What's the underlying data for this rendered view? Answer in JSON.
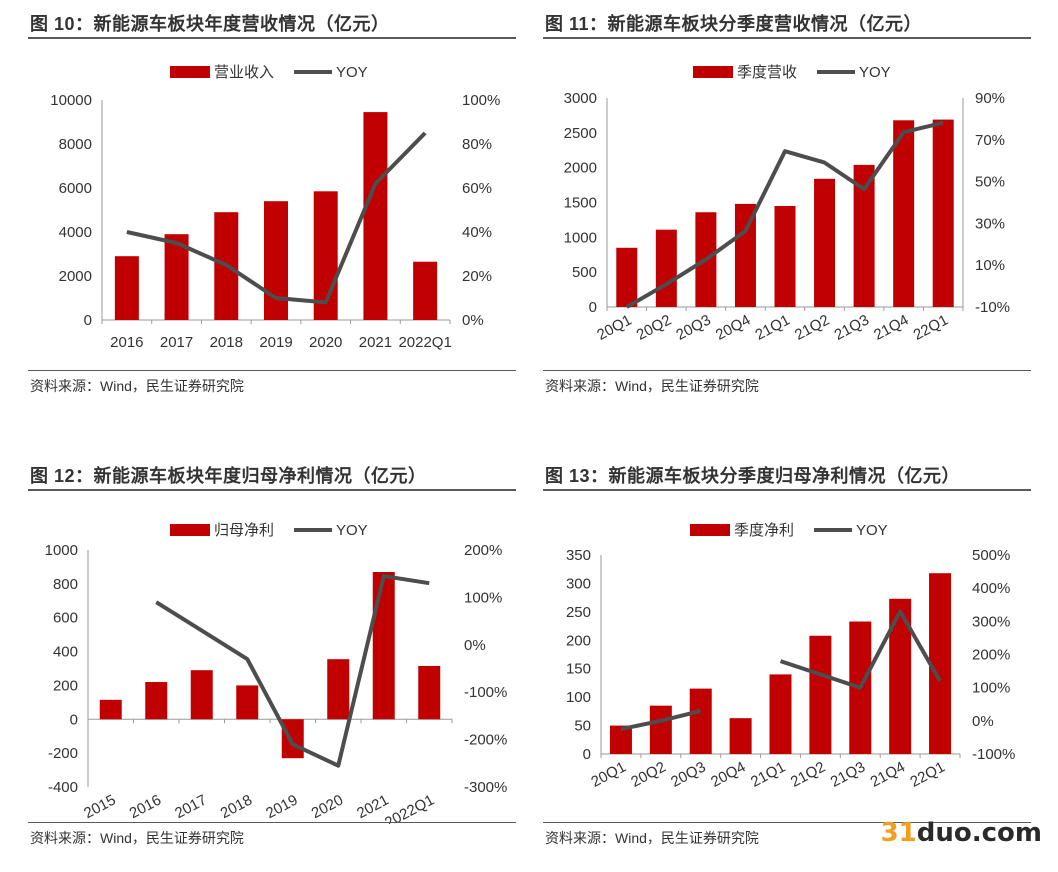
{
  "source_text": "资料来源：Wind，民生证券研究院",
  "watermark": {
    "number": "31",
    "text": "duo.com"
  },
  "colors": {
    "bar": "#c00000",
    "line": "#4d4d4d",
    "axis": "#9a9a9a",
    "text": "#333333"
  },
  "chart_data": [
    {
      "type": "bar",
      "title": "图 10：新能源车板块年度营收情况（亿元）",
      "categories": [
        "2016",
        "2017",
        "2018",
        "2019",
        "2020",
        "2021",
        "2022Q1"
      ],
      "series": [
        {
          "name": "营业收入",
          "type": "bar",
          "axis": "left",
          "values": [
            2900,
            3900,
            4900,
            5400,
            5850,
            9450,
            2650
          ]
        },
        {
          "name": "YOY",
          "type": "line",
          "axis": "right",
          "values": [
            40,
            35,
            25,
            10,
            8,
            62,
            85
          ]
        }
      ],
      "left_axis": {
        "min": 0,
        "max": 10000,
        "ticks": [
          "0",
          "2000",
          "4000",
          "6000",
          "8000",
          "10000"
        ]
      },
      "right_axis": {
        "min": 0,
        "max": 100,
        "ticks": [
          "0%",
          "20%",
          "40%",
          "60%",
          "80%",
          "100%"
        ]
      },
      "legend": "top-center"
    },
    {
      "type": "bar",
      "title": "图 11：新能源车板块分季度营收情况（亿元）",
      "categories": [
        "20Q1",
        "20Q2",
        "20Q3",
        "20Q4",
        "21Q1",
        "21Q2",
        "21Q3",
        "21Q4",
        "22Q1"
      ],
      "series": [
        {
          "name": "季度营收",
          "type": "bar",
          "axis": "left",
          "values": [
            850,
            1110,
            1360,
            1480,
            1450,
            1840,
            2040,
            2680,
            2690
          ]
        },
        {
          "name": "YOY",
          "type": "line",
          "axis": "right",
          "values": [
            -10,
            2,
            15,
            30,
            72,
            66,
            52,
            82,
            87
          ]
        }
      ],
      "left_axis": {
        "min": 0,
        "max": 3000,
        "ticks": [
          "0",
          "500",
          "1000",
          "1500",
          "2000",
          "2500",
          "3000"
        ]
      },
      "right_axis": {
        "min": -10,
        "max": 100,
        "ticks": [
          "-10%",
          "10%",
          "30%",
          "50%",
          "70%",
          "90%"
        ]
      },
      "legend": "top-center"
    },
    {
      "type": "bar",
      "title": "图 12：新能源车板块年度归母净利情况（亿元）",
      "categories": [
        "2015",
        "2016",
        "2017",
        "2018",
        "2019",
        "2020",
        "2021",
        "2022Q1"
      ],
      "series": [
        {
          "name": "归母净利",
          "type": "bar",
          "axis": "left",
          "values": [
            115,
            220,
            290,
            200,
            -230,
            355,
            870,
            315
          ]
        },
        {
          "name": "YOY",
          "type": "line",
          "axis": "right",
          "values": [
            null,
            90,
            30,
            -30,
            -210,
            -255,
            145,
            130
          ]
        }
      ],
      "left_axis": {
        "min": -400,
        "max": 1000,
        "ticks": [
          "-400",
          "-200",
          "0",
          "200",
          "400",
          "600",
          "800",
          "1000"
        ]
      },
      "right_axis": {
        "min": -300,
        "max": 200,
        "ticks": [
          "-300%",
          "-200%",
          "-100%",
          "0%",
          "100%",
          "200%"
        ]
      },
      "legend": "top-center"
    },
    {
      "type": "bar",
      "title": "图 13：新能源车板块分季度归母净利情况（亿元）",
      "categories": [
        "20Q1",
        "20Q2",
        "20Q3",
        "20Q4",
        "21Q1",
        "21Q2",
        "21Q3",
        "21Q4",
        "22Q1"
      ],
      "series": [
        {
          "name": "季度净利",
          "type": "bar",
          "axis": "left",
          "values": [
            50,
            85,
            115,
            63,
            140,
            208,
            233,
            273,
            318
          ]
        },
        {
          "name": "YOY",
          "type": "line",
          "axis": "right",
          "values": [
            -25,
            0,
            30,
            null,
            180,
            140,
            100,
            330,
            120
          ]
        }
      ],
      "left_axis": {
        "min": 0,
        "max": 350,
        "ticks": [
          "0",
          "50",
          "100",
          "150",
          "200",
          "250",
          "300",
          "350"
        ]
      },
      "right_axis": {
        "min": -100,
        "max": 500,
        "ticks": [
          "-100%",
          "0%",
          "100%",
          "200%",
          "300%",
          "400%",
          "500%"
        ]
      },
      "legend": "top-center"
    }
  ]
}
